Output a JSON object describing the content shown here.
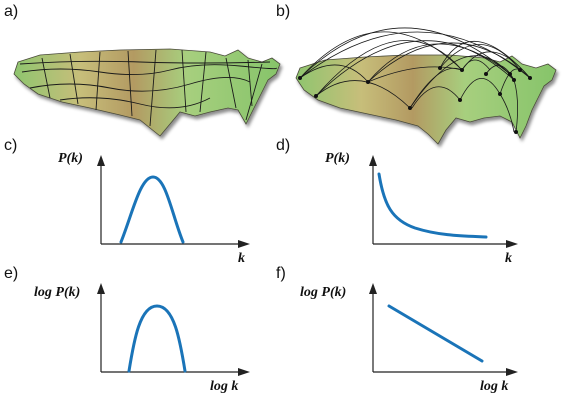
{
  "panels": {
    "a": {
      "letter": "a)"
    },
    "b": {
      "letter": "b)"
    },
    "c": {
      "letter": "c)",
      "ylabel": "P(k)",
      "xlabel": "k"
    },
    "d": {
      "letter": "d)",
      "ylabel": "P(k)",
      "xlabel": "k"
    },
    "e": {
      "letter": "e)",
      "ylabel": "log P(k)",
      "xlabel": "log k"
    },
    "f": {
      "letter": "f)",
      "ylabel": "log P(k)",
      "xlabel": "log k"
    }
  },
  "colors": {
    "curve": "#1a74b8",
    "land_light": "#9fcf7a",
    "land_mid": "#c9c27a",
    "land_dark": "#a98f5a",
    "lines": "#1a1a1a"
  },
  "chart_data": [
    {
      "panel": "c",
      "type": "line",
      "shape": "bell (Poisson)",
      "xscale": "linear",
      "yscale": "linear"
    },
    {
      "panel": "d",
      "type": "line",
      "shape": "decaying power law",
      "xscale": "linear",
      "yscale": "linear"
    },
    {
      "panel": "e",
      "type": "line",
      "shape": "bell",
      "xscale": "log",
      "yscale": "log"
    },
    {
      "panel": "f",
      "type": "line",
      "shape": "straight line, negative slope",
      "xscale": "log",
      "yscale": "log"
    }
  ]
}
